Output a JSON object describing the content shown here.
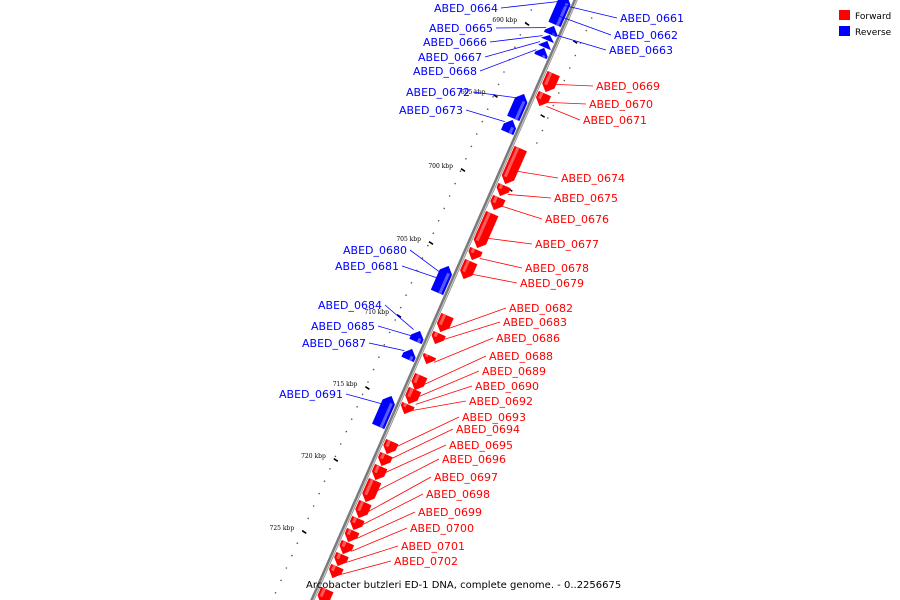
{
  "legend": {
    "forward": {
      "label": "Forward",
      "color": "#ff0000"
    },
    "reverse": {
      "label": "Reverse",
      "color": "#0000ff"
    }
  },
  "caption": "Arcobacter butzleri ED-1 DNA, complete genome. - 0..2256675",
  "ticks": [
    "690 kbp",
    "695 kbp",
    "700 kbp",
    "705 kbp",
    "710 kbp",
    "715 kbp",
    "720 kbp",
    "725 kbp"
  ],
  "genes": [
    {
      "label": "ABED_0661",
      "strand": "reverse"
    },
    {
      "label": "ABED_0662",
      "strand": "reverse"
    },
    {
      "label": "ABED_0663",
      "strand": "reverse"
    },
    {
      "label": "ABED_0664",
      "strand": "reverse"
    },
    {
      "label": "ABED_0665",
      "strand": "reverse"
    },
    {
      "label": "ABED_0666",
      "strand": "reverse"
    },
    {
      "label": "ABED_0667",
      "strand": "reverse"
    },
    {
      "label": "ABED_0668",
      "strand": "reverse"
    },
    {
      "label": "ABED_0669",
      "strand": "forward"
    },
    {
      "label": "ABED_0670",
      "strand": "forward"
    },
    {
      "label": "ABED_0671",
      "strand": "forward"
    },
    {
      "label": "ABED_0672",
      "strand": "reverse"
    },
    {
      "label": "ABED_0673",
      "strand": "reverse"
    },
    {
      "label": "ABED_0674",
      "strand": "forward"
    },
    {
      "label": "ABED_0675",
      "strand": "forward"
    },
    {
      "label": "ABED_0676",
      "strand": "forward"
    },
    {
      "label": "ABED_0677",
      "strand": "forward"
    },
    {
      "label": "ABED_0678",
      "strand": "forward"
    },
    {
      "label": "ABED_0679",
      "strand": "forward"
    },
    {
      "label": "ABED_0680",
      "strand": "reverse"
    },
    {
      "label": "ABED_0681",
      "strand": "reverse"
    },
    {
      "label": "ABED_0682",
      "strand": "forward"
    },
    {
      "label": "ABED_0683",
      "strand": "forward"
    },
    {
      "label": "ABED_0684",
      "strand": "reverse"
    },
    {
      "label": "ABED_0685",
      "strand": "reverse"
    },
    {
      "label": "ABED_0686",
      "strand": "forward"
    },
    {
      "label": "ABED_0687",
      "strand": "reverse"
    },
    {
      "label": "ABED_0688",
      "strand": "forward"
    },
    {
      "label": "ABED_0689",
      "strand": "forward"
    },
    {
      "label": "ABED_0690",
      "strand": "forward"
    },
    {
      "label": "ABED_0691",
      "strand": "reverse"
    },
    {
      "label": "ABED_0692",
      "strand": "forward"
    },
    {
      "label": "ABED_0693",
      "strand": "forward"
    },
    {
      "label": "ABED_0694",
      "strand": "forward"
    },
    {
      "label": "ABED_0695",
      "strand": "forward"
    },
    {
      "label": "ABED_0696",
      "strand": "forward"
    },
    {
      "label": "ABED_0697",
      "strand": "forward"
    },
    {
      "label": "ABED_0698",
      "strand": "forward"
    },
    {
      "label": "ABED_0699",
      "strand": "forward"
    },
    {
      "label": "ABED_0700",
      "strand": "forward"
    },
    {
      "label": "ABED_0701",
      "strand": "forward"
    },
    {
      "label": "ABED_0702",
      "strand": "forward"
    }
  ]
}
